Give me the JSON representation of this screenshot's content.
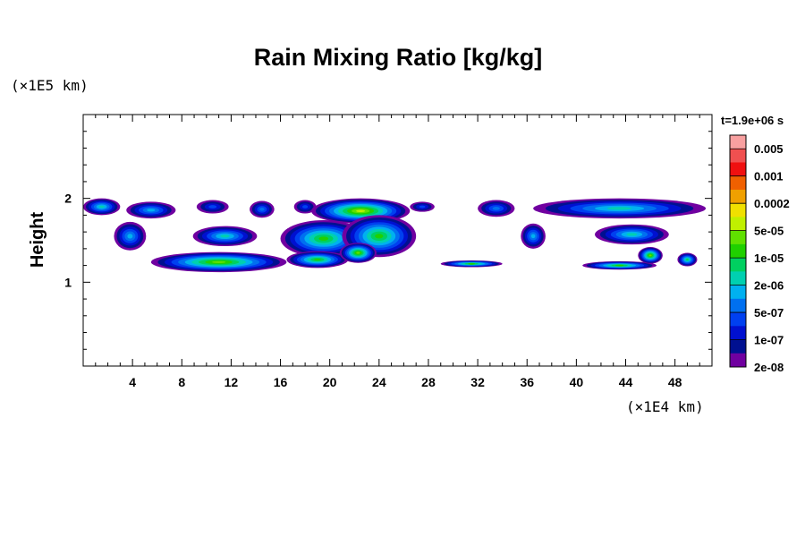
{
  "chart_data": {
    "type": "heatmap",
    "title": "Rain Mixing Ratio [kg/kg]",
    "ylabel": "Height",
    "xlabel": "",
    "x_unit": "(×1E4 km)",
    "y_unit": "(×1E5 km)",
    "time_label": "t=1.9e+06 s",
    "xlim": [
      0,
      51
    ],
    "ylim": [
      0,
      3
    ],
    "x_ticks": [
      4,
      8,
      12,
      16,
      20,
      24,
      28,
      32,
      36,
      40,
      44,
      48
    ],
    "x_tick_labels": [
      "4",
      "8",
      "12",
      "16",
      "20",
      "24",
      "28",
      "32",
      "36",
      "40",
      "44",
      "48"
    ],
    "y_ticks": [
      1,
      2
    ],
    "y_tick_labels": [
      "1",
      "2"
    ],
    "colorbar": {
      "labels": [
        "0.005",
        "0.001",
        "0.0002",
        "5e-05",
        "1e-05",
        "2e-06",
        "5e-07",
        "1e-07",
        "2e-08"
      ],
      "colors_top_to_bottom": [
        "#f8a0a0",
        "#f05050",
        "#f01010",
        "#f06000",
        "#f0a000",
        "#f0e000",
        "#c0f000",
        "#60e000",
        "#20d000",
        "#00d060",
        "#00d0b0",
        "#00b0f0",
        "#0070f0",
        "#0040f0",
        "#0010d0",
        "#001090",
        "#7000a0"
      ]
    },
    "cells": [
      {
        "x": 1.5,
        "y": 1.9,
        "rx": 1.5,
        "ry": 0.1,
        "level": 6
      },
      {
        "x": 5.5,
        "y": 1.86,
        "rx": 2.0,
        "ry": 0.1,
        "level": 5
      },
      {
        "x": 10.5,
        "y": 1.9,
        "rx": 1.3,
        "ry": 0.08,
        "level": 3
      },
      {
        "x": 14.5,
        "y": 1.87,
        "rx": 1.0,
        "ry": 0.1,
        "level": 4
      },
      {
        "x": 18.0,
        "y": 1.9,
        "rx": 0.9,
        "ry": 0.08,
        "level": 3
      },
      {
        "x": 22.5,
        "y": 1.85,
        "rx": 4.0,
        "ry": 0.15,
        "level": 10
      },
      {
        "x": 27.5,
        "y": 1.9,
        "rx": 1.0,
        "ry": 0.06,
        "level": 3
      },
      {
        "x": 33.5,
        "y": 1.88,
        "rx": 1.5,
        "ry": 0.1,
        "level": 4
      },
      {
        "x": 43.5,
        "y": 1.88,
        "rx": 7.0,
        "ry": 0.12,
        "level": 6
      },
      {
        "x": 3.8,
        "y": 1.55,
        "rx": 1.3,
        "ry": 0.17,
        "level": 5
      },
      {
        "x": 11.5,
        "y": 1.55,
        "rx": 2.6,
        "ry": 0.12,
        "level": 6
      },
      {
        "x": 19.5,
        "y": 1.52,
        "rx": 3.5,
        "ry": 0.22,
        "level": 8
      },
      {
        "x": 24.0,
        "y": 1.55,
        "rx": 3.0,
        "ry": 0.25,
        "level": 8
      },
      {
        "x": 36.5,
        "y": 1.55,
        "rx": 1.0,
        "ry": 0.15,
        "level": 5
      },
      {
        "x": 44.5,
        "y": 1.57,
        "rx": 3.0,
        "ry": 0.12,
        "level": 6
      },
      {
        "x": 11.0,
        "y": 1.24,
        "rx": 5.5,
        "ry": 0.12,
        "level": 9
      },
      {
        "x": 19.0,
        "y": 1.27,
        "rx": 2.5,
        "ry": 0.1,
        "level": 8
      },
      {
        "x": 22.3,
        "y": 1.35,
        "rx": 1.5,
        "ry": 0.12,
        "level": 9
      },
      {
        "x": 31.5,
        "y": 1.22,
        "rx": 2.5,
        "ry": 0.04,
        "level": 8
      },
      {
        "x": 43.5,
        "y": 1.2,
        "rx": 3.0,
        "ry": 0.05,
        "level": 8
      },
      {
        "x": 46.0,
        "y": 1.32,
        "rx": 1.0,
        "ry": 0.1,
        "level": 9
      },
      {
        "x": 49.0,
        "y": 1.27,
        "rx": 0.8,
        "ry": 0.08,
        "level": 7
      }
    ]
  }
}
